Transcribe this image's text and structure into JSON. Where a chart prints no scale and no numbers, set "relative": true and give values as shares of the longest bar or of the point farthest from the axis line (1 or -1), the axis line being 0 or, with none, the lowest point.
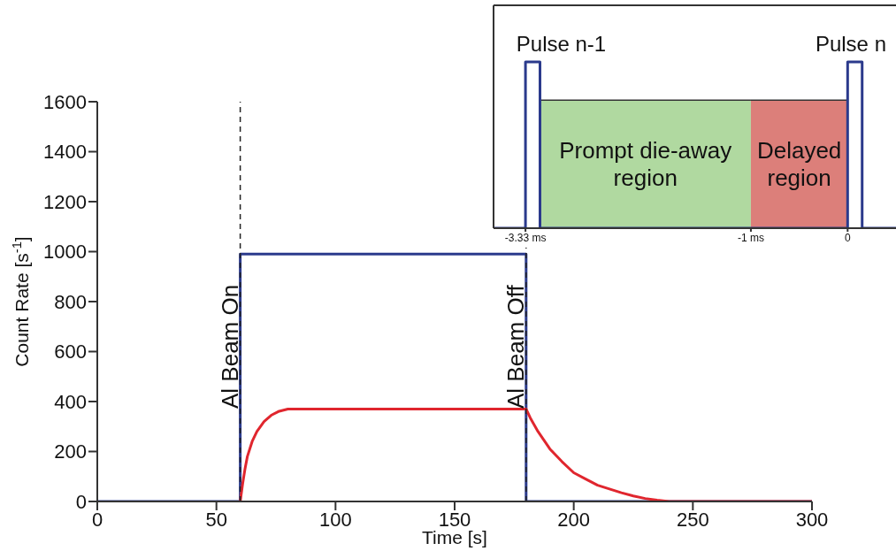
{
  "chart_data": [
    {
      "type": "line",
      "xlabel": "Time [s]",
      "ylabel": "Count Rate [s$^{-1}$]",
      "xlim": [
        0,
        300
      ],
      "xticks": [
        0,
        50,
        100,
        150,
        200,
        250,
        300
      ],
      "ylim": [
        0,
        1600
      ],
      "yticks": [
        0,
        200,
        400,
        600,
        800,
        1000,
        1200,
        1400,
        1600
      ],
      "marker": "none",
      "series": [
        {
          "color": "#2b3a8c",
          "x": [
            0,
            60,
            60,
            180,
            180,
            300
          ],
          "values": [
            0,
            0,
            990,
            990,
            0,
            0
          ]
        },
        {
          "color": "#e0262e",
          "x": [
            60,
            61,
            62,
            63,
            65,
            67,
            70,
            73,
            76,
            80,
            180,
            182,
            185,
            190,
            195,
            200,
            205,
            210,
            215,
            220,
            225,
            230,
            235,
            240,
            300
          ],
          "values": [
            0,
            70,
            130,
            180,
            240,
            280,
            320,
            345,
            360,
            370,
            370,
            330,
            280,
            210,
            160,
            115,
            90,
            65,
            50,
            35,
            22,
            12,
            5,
            0,
            0
          ]
        }
      ],
      "ref_lines": [
        {
          "axis": "x",
          "value": 60,
          "label": "Al Beam On",
          "line_style": "dashed"
        },
        {
          "axis": "x",
          "value": 180,
          "label": "Al Beam Off",
          "line_style": "dashed"
        }
      ]
    },
    {
      "type": "line",
      "relative": true,
      "xlim": [
        -3.66,
        0.5
      ],
      "xticks": [
        {
          "value": -3.33,
          "label": "-3.33 ms"
        },
        {
          "value": -1,
          "label": "-1 ms"
        },
        0
      ],
      "tick_labels": "x",
      "marker": "none",
      "series": [
        {
          "type": "area",
          "name": "Prompt die-away region",
          "color": "#b0d9a0",
          "x": [
            -3.18,
            -1
          ],
          "values": [
            0.77,
            0.77
          ]
        },
        {
          "type": "area",
          "name": "Delayed region",
          "color": "#dc7f7a",
          "x": [
            -1,
            0
          ],
          "values": [
            0.77,
            0.77
          ]
        },
        {
          "color": "#2b3a8c",
          "x": [
            -3.66,
            -3.33,
            -3.33,
            -3.18,
            -3.18,
            0,
            0,
            0.15,
            0.15,
            0.5
          ],
          "values": [
            0,
            0,
            1,
            1,
            0,
            0,
            1,
            1,
            0,
            0
          ]
        }
      ],
      "annotations": [
        {
          "text": "Pulse n-1",
          "x": -3.255,
          "y": 1
        },
        {
          "text": "Pulse n",
          "x": 0.075,
          "y": 1
        }
      ]
    }
  ]
}
